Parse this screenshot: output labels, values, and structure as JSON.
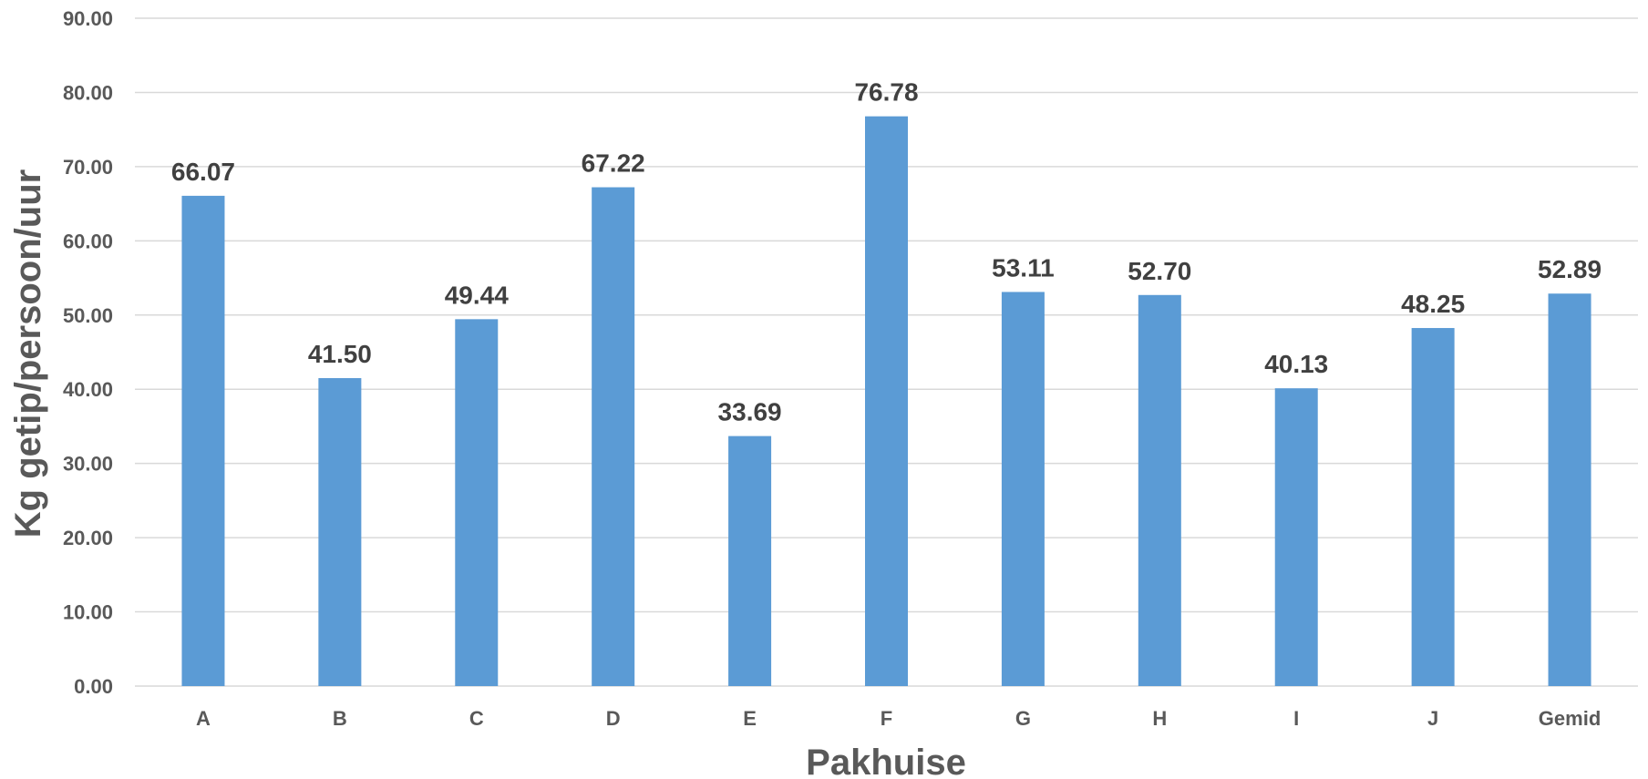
{
  "chart_data": {
    "type": "bar",
    "categories": [
      "A",
      "B",
      "C",
      "D",
      "E",
      "F",
      "G",
      "H",
      "I",
      "J",
      "Gemid"
    ],
    "values": [
      66.07,
      41.5,
      49.44,
      67.22,
      33.69,
      76.78,
      53.11,
      52.7,
      40.13,
      48.25,
      52.89
    ],
    "data_labels": [
      "66.07",
      "41.50",
      "49.44",
      "67.22",
      "33.69",
      "76.78",
      "53.11",
      "52.70",
      "40.13",
      "48.25",
      "52.89"
    ],
    "y_ticks": [
      "0.00",
      "10.00",
      "20.00",
      "30.00",
      "40.00",
      "50.00",
      "60.00",
      "70.00",
      "80.00",
      "90.00"
    ],
    "title": "",
    "xlabel": "Pakhuise",
    "ylabel": "Kg getip/persoon/uur",
    "ylim": [
      0,
      90
    ],
    "grid": true,
    "legend": "none",
    "bar_color": "#5b9bd5"
  }
}
